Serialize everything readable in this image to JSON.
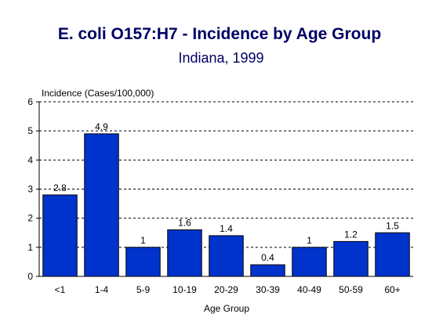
{
  "chart_data": {
    "type": "bar",
    "title": "E. coli O157:H7 - Incidence by Age Group",
    "subtitle": "Indiana, 1999",
    "xlabel": "Age Group",
    "ylabel": "Incidence (Cases/100,000)",
    "categories": [
      "<1",
      "1-4",
      "5-9",
      "10-19",
      "20-29",
      "30-39",
      "40-49",
      "50-59",
      "60+"
    ],
    "values": [
      2.8,
      4.9,
      1,
      1.6,
      1.4,
      0.4,
      1,
      1.2,
      1.5
    ],
    "data_labels": [
      "2.8",
      "4.9",
      "1",
      "1.6",
      "1.4",
      "0.4",
      "1",
      "1.2",
      "1.5"
    ],
    "ylim": [
      0,
      6
    ],
    "yticks": [
      "0",
      "1",
      "2",
      "3",
      "4",
      "5",
      "6"
    ],
    "grid": "horizontal dashed",
    "legend": "none",
    "bar_color": "#0033cc"
  }
}
